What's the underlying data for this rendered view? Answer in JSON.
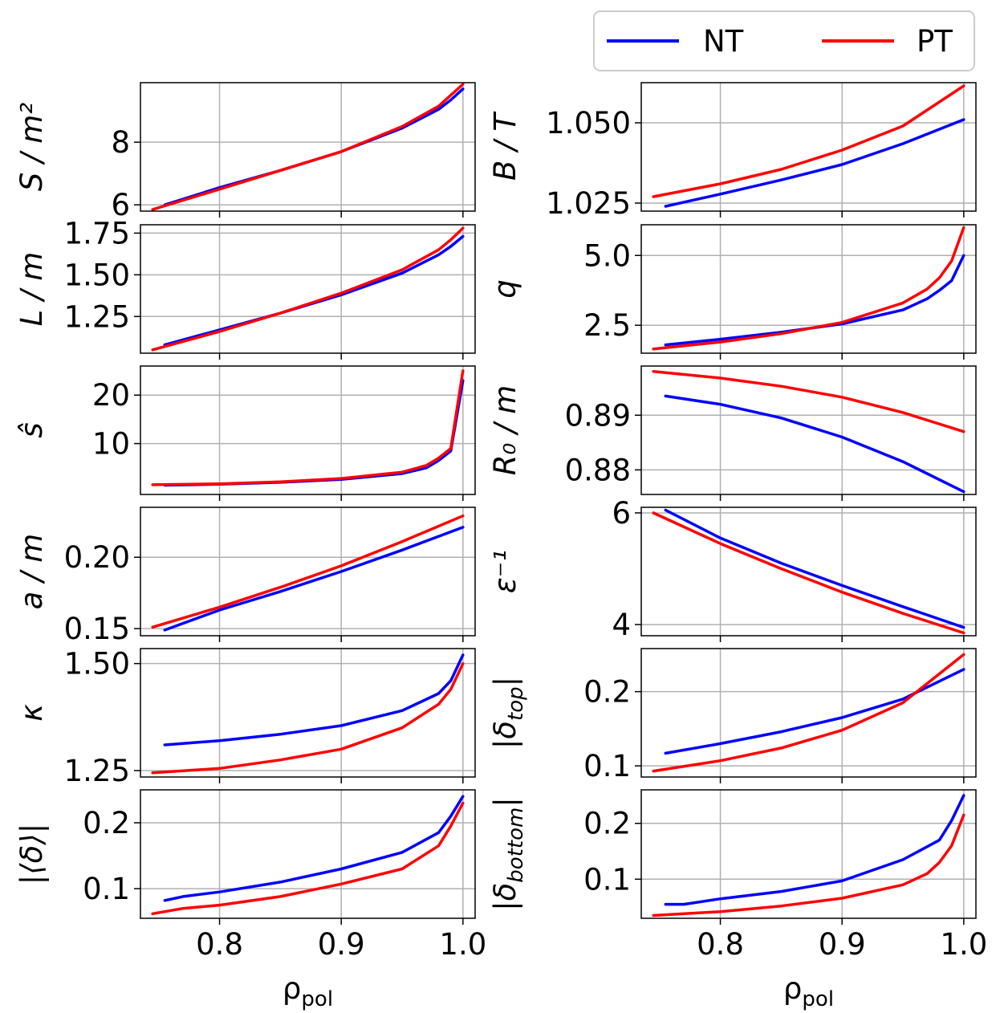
{
  "legend": {
    "placement": "top-right",
    "entries": [
      {
        "name": "NT",
        "color": "#0000ff"
      },
      {
        "name": "PT",
        "color": "#ff0000"
      }
    ]
  },
  "colors": {
    "NT": "#0000ff",
    "PT": "#ff0000",
    "grid": "#b0b0b0"
  },
  "chart_data": [
    {
      "type": "line",
      "col": 0,
      "row": 0,
      "ylabel": "S / m²",
      "xlim": [
        0.735,
        1.01
      ],
      "ylim": [
        5.8,
        9.9
      ],
      "yticks": [
        {
          "v": 6,
          "label": "6"
        },
        {
          "v": 8,
          "label": "8"
        }
      ],
      "xticks": [],
      "series": [
        {
          "name": "NT",
          "x": [
            0.755,
            0.8,
            0.85,
            0.9,
            0.95,
            0.98,
            0.99,
            1.0
          ],
          "y": [
            6.0,
            6.55,
            7.1,
            7.7,
            8.45,
            9.05,
            9.35,
            9.7
          ]
        },
        {
          "name": "PT",
          "x": [
            0.745,
            0.8,
            0.85,
            0.9,
            0.95,
            0.98,
            0.99,
            1.0
          ],
          "y": [
            5.85,
            6.5,
            7.1,
            7.7,
            8.5,
            9.15,
            9.5,
            9.85
          ]
        }
      ]
    },
    {
      "type": "line",
      "col": 1,
      "row": 0,
      "ylabel": "B / T",
      "xlim": [
        0.735,
        1.01
      ],
      "ylim": [
        1.0225,
        1.0625
      ],
      "yticks": [
        {
          "v": 1.025,
          "label": "1.025"
        },
        {
          "v": 1.05,
          "label": "1.050"
        }
      ],
      "xticks": [],
      "series": [
        {
          "name": "NT",
          "x": [
            0.755,
            0.8,
            0.85,
            0.9,
            0.95,
            1.0
          ],
          "y": [
            1.024,
            1.0278,
            1.0322,
            1.037,
            1.0435,
            1.051
          ]
        },
        {
          "name": "PT",
          "x": [
            0.745,
            0.8,
            0.85,
            0.9,
            0.95,
            1.0
          ],
          "y": [
            1.027,
            1.031,
            1.0355,
            1.0415,
            1.049,
            1.0615
          ]
        }
      ]
    },
    {
      "type": "line",
      "col": 0,
      "row": 1,
      "ylabel": "L / m",
      "xlim": [
        0.735,
        1.01
      ],
      "ylim": [
        1.03,
        1.8
      ],
      "yticks": [
        {
          "v": 1.25,
          "label": "1.25"
        },
        {
          "v": 1.5,
          "label": "1.50"
        },
        {
          "v": 1.75,
          "label": "1.75"
        }
      ],
      "xticks": [],
      "series": [
        {
          "name": "NT",
          "x": [
            0.755,
            0.8,
            0.85,
            0.9,
            0.95,
            0.98,
            0.99,
            1.0
          ],
          "y": [
            1.08,
            1.17,
            1.27,
            1.38,
            1.51,
            1.62,
            1.67,
            1.73
          ]
        },
        {
          "name": "PT",
          "x": [
            0.745,
            0.8,
            0.85,
            0.9,
            0.95,
            0.98,
            0.99,
            1.0
          ],
          "y": [
            1.05,
            1.16,
            1.27,
            1.39,
            1.53,
            1.65,
            1.71,
            1.78
          ]
        }
      ]
    },
    {
      "type": "line",
      "col": 1,
      "row": 1,
      "ylabel": "q",
      "xlim": [
        0.735,
        1.01
      ],
      "ylim": [
        1.5,
        6.1
      ],
      "yticks": [
        {
          "v": 2.5,
          "label": "2.5"
        },
        {
          "v": 5.0,
          "label": "5.0"
        }
      ],
      "xticks": [],
      "series": [
        {
          "name": "NT",
          "x": [
            0.755,
            0.8,
            0.85,
            0.9,
            0.95,
            0.97,
            0.98,
            0.99,
            1.0
          ],
          "y": [
            1.8,
            2.0,
            2.25,
            2.55,
            3.05,
            3.45,
            3.75,
            4.1,
            5.0
          ]
        },
        {
          "name": "PT",
          "x": [
            0.745,
            0.8,
            0.85,
            0.9,
            0.95,
            0.97,
            0.98,
            0.99,
            1.0
          ],
          "y": [
            1.65,
            1.9,
            2.2,
            2.6,
            3.3,
            3.8,
            4.2,
            4.8,
            6.0
          ]
        }
      ]
    },
    {
      "type": "line",
      "col": 0,
      "row": 2,
      "ylabel": "ŝ",
      "xlim": [
        0.735,
        1.01
      ],
      "ylim": [
        -0.5,
        26
      ],
      "yticks": [
        {
          "v": 10,
          "label": "10"
        },
        {
          "v": 20,
          "label": "20"
        }
      ],
      "xticks": [],
      "series": [
        {
          "name": "NT",
          "x": [
            0.755,
            0.8,
            0.85,
            0.9,
            0.95,
            0.97,
            0.98,
            0.99,
            1.0
          ],
          "y": [
            1.4,
            1.6,
            2.0,
            2.6,
            3.8,
            5.0,
            6.5,
            8.5,
            23
          ]
        },
        {
          "name": "PT",
          "x": [
            0.745,
            0.8,
            0.85,
            0.9,
            0.95,
            0.97,
            0.98,
            0.99,
            1.0
          ],
          "y": [
            1.5,
            1.7,
            2.1,
            2.8,
            4.1,
            5.5,
            7.0,
            9.0,
            25
          ]
        }
      ]
    },
    {
      "type": "line",
      "col": 1,
      "row": 2,
      "ylabel": "R₀ / m",
      "xlim": [
        0.735,
        1.01
      ],
      "ylim": [
        0.8755,
        0.899
      ],
      "yticks": [
        {
          "v": 0.88,
          "label": "0.88"
        },
        {
          "v": 0.89,
          "label": "0.89"
        }
      ],
      "xticks": [],
      "series": [
        {
          "name": "NT",
          "x": [
            0.755,
            0.8,
            0.85,
            0.9,
            0.95,
            1.0
          ],
          "y": [
            0.8935,
            0.892,
            0.8895,
            0.886,
            0.8815,
            0.876
          ]
        },
        {
          "name": "PT",
          "x": [
            0.745,
            0.8,
            0.85,
            0.9,
            0.95,
            1.0
          ],
          "y": [
            0.898,
            0.8968,
            0.8953,
            0.8933,
            0.8905,
            0.887
          ]
        }
      ]
    },
    {
      "type": "line",
      "col": 0,
      "row": 3,
      "ylabel": "a / m",
      "xlim": [
        0.735,
        1.01
      ],
      "ylim": [
        0.145,
        0.235
      ],
      "yticks": [
        {
          "v": 0.15,
          "label": "0.15"
        },
        {
          "v": 0.2,
          "label": "0.20"
        }
      ],
      "xticks": [],
      "series": [
        {
          "name": "NT",
          "x": [
            0.755,
            0.8,
            0.85,
            0.9,
            0.95,
            1.0
          ],
          "y": [
            0.149,
            0.163,
            0.176,
            0.19,
            0.205,
            0.221
          ]
        },
        {
          "name": "PT",
          "x": [
            0.745,
            0.8,
            0.85,
            0.9,
            0.95,
            1.0
          ],
          "y": [
            0.151,
            0.165,
            0.179,
            0.194,
            0.211,
            0.229
          ]
        }
      ]
    },
    {
      "type": "line",
      "col": 1,
      "row": 3,
      "ylabel": "ε⁻¹",
      "xlim": [
        0.735,
        1.01
      ],
      "ylim": [
        3.8,
        6.1
      ],
      "yticks": [
        {
          "v": 4,
          "label": "4"
        },
        {
          "v": 6,
          "label": "6"
        }
      ],
      "xticks": [],
      "series": [
        {
          "name": "NT",
          "x": [
            0.755,
            0.8,
            0.85,
            0.9,
            0.95,
            1.0
          ],
          "y": [
            6.05,
            5.55,
            5.1,
            4.7,
            4.32,
            3.95
          ]
        },
        {
          "name": "PT",
          "x": [
            0.745,
            0.8,
            0.85,
            0.9,
            0.95,
            1.0
          ],
          "y": [
            6.0,
            5.45,
            5.0,
            4.58,
            4.2,
            3.85
          ]
        }
      ]
    },
    {
      "type": "line",
      "col": 0,
      "row": 4,
      "ylabel": "κ",
      "xlim": [
        0.735,
        1.01
      ],
      "ylim": [
        1.235,
        1.535
      ],
      "yticks": [
        {
          "v": 1.25,
          "label": "1.25"
        },
        {
          "v": 1.5,
          "label": "1.50"
        }
      ],
      "xticks": [],
      "series": [
        {
          "name": "NT",
          "x": [
            0.755,
            0.8,
            0.85,
            0.9,
            0.95,
            0.98,
            0.99,
            1.0
          ],
          "y": [
            1.31,
            1.32,
            1.335,
            1.355,
            1.39,
            1.43,
            1.46,
            1.52
          ]
        },
        {
          "name": "PT",
          "x": [
            0.745,
            0.8,
            0.85,
            0.9,
            0.95,
            0.98,
            0.99,
            1.0
          ],
          "y": [
            1.245,
            1.255,
            1.275,
            1.3,
            1.35,
            1.405,
            1.44,
            1.5
          ]
        }
      ]
    },
    {
      "type": "line",
      "col": 1,
      "row": 4,
      "ylabel": "|δ_top|",
      "xlim": [
        0.735,
        1.01
      ],
      "ylim": [
        0.085,
        0.258
      ],
      "yticks": [
        {
          "v": 0.1,
          "label": "0.1"
        },
        {
          "v": 0.2,
          "label": "0.2"
        }
      ],
      "xticks": [],
      "series": [
        {
          "name": "NT",
          "x": [
            0.755,
            0.8,
            0.85,
            0.9,
            0.95,
            1.0
          ],
          "y": [
            0.117,
            0.13,
            0.146,
            0.165,
            0.19,
            0.23
          ]
        },
        {
          "name": "PT",
          "x": [
            0.745,
            0.8,
            0.85,
            0.9,
            0.95,
            1.0
          ],
          "y": [
            0.093,
            0.107,
            0.124,
            0.148,
            0.185,
            0.25
          ]
        }
      ]
    },
    {
      "type": "line",
      "col": 0,
      "row": 5,
      "ylabel": "|⟨δ⟩|",
      "xlim": [
        0.735,
        1.01
      ],
      "ylim": [
        0.055,
        0.25
      ],
      "yticks": [
        {
          "v": 0.1,
          "label": "0.1"
        },
        {
          "v": 0.2,
          "label": "0.2"
        }
      ],
      "xticks": [
        {
          "v": 0.8,
          "label": "0.8"
        },
        {
          "v": 0.9,
          "label": "0.9"
        },
        {
          "v": 1.0,
          "label": "1.0"
        }
      ],
      "xlabel": "ρ_pol",
      "series": [
        {
          "name": "NT",
          "x": [
            0.755,
            0.77,
            0.8,
            0.85,
            0.9,
            0.95,
            0.98,
            0.99,
            1.0
          ],
          "y": [
            0.082,
            0.088,
            0.095,
            0.11,
            0.13,
            0.155,
            0.185,
            0.21,
            0.24
          ]
        },
        {
          "name": "PT",
          "x": [
            0.745,
            0.77,
            0.8,
            0.85,
            0.9,
            0.95,
            0.98,
            0.99,
            1.0
          ],
          "y": [
            0.062,
            0.07,
            0.075,
            0.088,
            0.107,
            0.13,
            0.165,
            0.195,
            0.23
          ]
        }
      ]
    },
    {
      "type": "line",
      "col": 1,
      "row": 5,
      "ylabel": "|δ_bottom|",
      "xlim": [
        0.735,
        1.01
      ],
      "ylim": [
        0.03,
        0.26
      ],
      "yticks": [
        {
          "v": 0.1,
          "label": "0.1"
        },
        {
          "v": 0.2,
          "label": "0.2"
        }
      ],
      "xticks": [
        {
          "v": 0.8,
          "label": "0.8"
        },
        {
          "v": 0.9,
          "label": "0.9"
        },
        {
          "v": 1.0,
          "label": "1.0"
        }
      ],
      "xlabel": "ρ_pol",
      "series": [
        {
          "name": "NT",
          "x": [
            0.755,
            0.77,
            0.8,
            0.85,
            0.9,
            0.95,
            0.98,
            0.99,
            1.0
          ],
          "y": [
            0.055,
            0.055,
            0.065,
            0.078,
            0.097,
            0.135,
            0.17,
            0.205,
            0.25
          ]
        },
        {
          "name": "PT",
          "x": [
            0.745,
            0.8,
            0.85,
            0.9,
            0.95,
            0.97,
            0.98,
            0.99,
            1.0
          ],
          "y": [
            0.035,
            0.042,
            0.052,
            0.066,
            0.09,
            0.11,
            0.13,
            0.16,
            0.215
          ]
        }
      ]
    }
  ]
}
